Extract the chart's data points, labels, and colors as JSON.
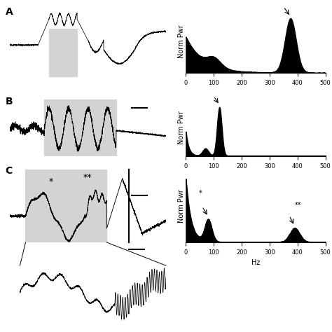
{
  "fig_width": 4.74,
  "fig_height": 4.74,
  "bg_color": "#ffffff",
  "panel_label_fontsize": 10,
  "axis_label_fontsize": 7,
  "tick_fontsize": 6,
  "ylabel_pwr": "Norm Pwr",
  "xlabel_hz": "Hz",
  "xticks": [
    0,
    100,
    200,
    300,
    400,
    500
  ]
}
